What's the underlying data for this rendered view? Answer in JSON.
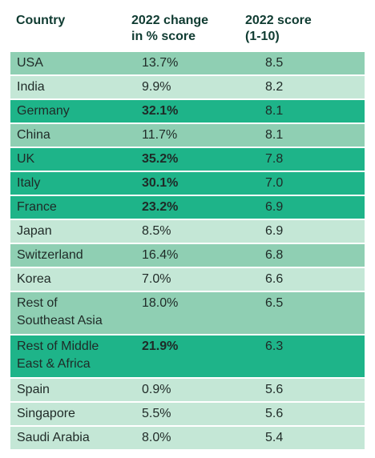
{
  "colors": {
    "mid": "#8fcfb3",
    "light": "#c4e7d6",
    "dark": "#1eb489",
    "header_text": "#0f3b31"
  },
  "header": {
    "country": "Country",
    "change": "2022 change\nin % score",
    "score": "2022 score\n(1-10)"
  },
  "chart_data": {
    "type": "table",
    "columns": [
      "Country",
      "2022 change in % score",
      "2022 score (1-10)"
    ],
    "rows": [
      {
        "country": "USA",
        "change": "13.7%",
        "score": "8.5",
        "shade": "mid",
        "bold": false
      },
      {
        "country": "India",
        "change": "9.9%",
        "score": "8.2",
        "shade": "light",
        "bold": false
      },
      {
        "country": "Germany",
        "change": "32.1%",
        "score": "8.1",
        "shade": "dark",
        "bold": true
      },
      {
        "country": "China",
        "change": "11.7%",
        "score": "8.1",
        "shade": "mid",
        "bold": false
      },
      {
        "country": "UK",
        "change": "35.2%",
        "score": "7.8",
        "shade": "dark",
        "bold": true
      },
      {
        "country": "Italy",
        "change": "30.1%",
        "score": "7.0",
        "shade": "dark",
        "bold": true
      },
      {
        "country": "France",
        "change": "23.2%",
        "score": "6.9",
        "shade": "dark",
        "bold": true
      },
      {
        "country": "Japan",
        "change": "8.5%",
        "score": "6.9",
        "shade": "light",
        "bold": false
      },
      {
        "country": "Switzerland",
        "change": "16.4%",
        "score": "6.8",
        "shade": "mid",
        "bold": false
      },
      {
        "country": "Korea",
        "change": "7.0%",
        "score": "6.6",
        "shade": "light",
        "bold": false
      },
      {
        "country": "Rest of\nSoutheast Asia",
        "change": "18.0%",
        "score": "6.5",
        "shade": "mid",
        "bold": false
      },
      {
        "country": "Rest of Middle\nEast & Africa",
        "change": "21.9%",
        "score": "6.3",
        "shade": "dark",
        "bold": true
      },
      {
        "country": "Spain",
        "change": "0.9%",
        "score": "5.6",
        "shade": "light",
        "bold": false
      },
      {
        "country": "Singapore",
        "change": "5.5%",
        "score": "5.6",
        "shade": "light",
        "bold": false
      },
      {
        "country": "Saudi Arabia",
        "change": "8.0%",
        "score": "5.4",
        "shade": "light",
        "bold": false
      }
    ]
  }
}
